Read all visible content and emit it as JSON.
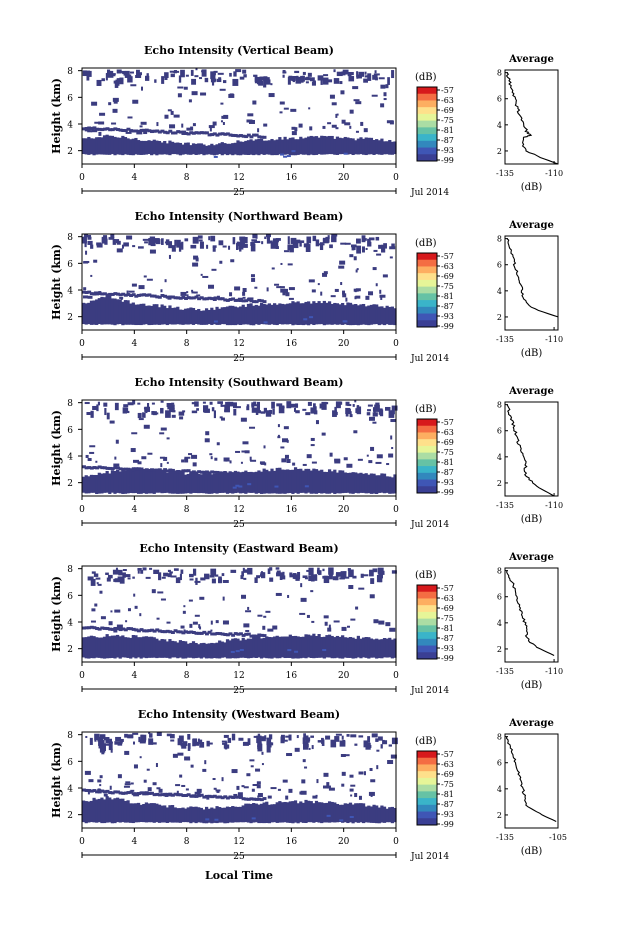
{
  "shared": {
    "x_ticks": [
      "0",
      "4",
      "8",
      "12",
      "16",
      "20",
      "0"
    ],
    "day_label": "25",
    "month_label": "Jul 2014",
    "y_ticks": [
      "2",
      "4",
      "6",
      "8"
    ],
    "ylabel": "Height (km)",
    "colorbar_unit": "(dB)",
    "colorbar_labels": [
      "-57",
      "-63",
      "-69",
      "-75",
      "-81",
      "-87",
      "-93",
      "-99"
    ],
    "colorbar_colors": [
      "#d7191c",
      "#f46d43",
      "#fdae61",
      "#fee08b",
      "#e6f598",
      "#abdda4",
      "#66c2a5",
      "#3ab4c9",
      "#3288bd",
      "#3f56b5",
      "#3a3f94"
    ],
    "fill_color": "#3b3c80",
    "profile_title": "Average",
    "profile_xlabel": "(dB)",
    "xlabel_bottom": "Local Time"
  },
  "chart_data": [
    {
      "type": "heatmap",
      "title": "Echo Intensity (Vertical Beam)",
      "ylabel": "Height (km)",
      "x_range_hours": [
        0,
        24
      ],
      "y_range_km": [
        1,
        8.2
      ],
      "colorbar": {
        "min": -99,
        "max": -57,
        "unit": "dB"
      },
      "dense_layer_top_km": [
        2.9,
        3.0,
        3.1,
        3.0,
        2.9,
        2.8,
        2.7,
        2.6,
        2.5,
        2.45,
        2.5,
        2.6,
        2.7,
        2.8,
        2.85,
        2.9,
        2.95,
        3.0,
        3.05,
        3.0,
        2.95,
        2.9,
        2.9,
        2.8,
        2.7
      ],
      "layer_bottom_km": 1.7,
      "average_profile": {
        "title": "Average",
        "xlabel": "(dB)",
        "xticks": [
          "-135",
          "-110"
        ],
        "xlim": [
          -135,
          -108
        ],
        "yticks": [
          "2",
          "4",
          "6",
          "8"
        ],
        "ylim": [
          1,
          8.2
        ],
        "height_km": [
          1.0,
          1.5,
          2.0,
          2.5,
          3.0,
          3.2,
          3.5,
          4.0,
          4.5,
          5.0,
          5.5,
          6.0,
          6.5,
          7.0,
          7.5,
          8.0
        ],
        "value_db": [
          -108,
          -117,
          -124,
          -126,
          -126,
          -122,
          -124,
          -125,
          -127,
          -128,
          -129,
          -130,
          -131,
          -132,
          -133,
          -134
        ]
      }
    },
    {
      "type": "heatmap",
      "title": "Echo Intensity (Northward Beam)",
      "ylabel": "Height (km)",
      "x_range_hours": [
        0,
        24
      ],
      "y_range_km": [
        1,
        8.2
      ],
      "colorbar": {
        "min": -99,
        "max": -57,
        "unit": "dB"
      },
      "dense_layer_top_km": [
        3.0,
        3.3,
        3.5,
        3.2,
        3.0,
        2.9,
        2.8,
        2.7,
        2.6,
        2.55,
        2.6,
        2.7,
        2.8,
        2.9,
        2.95,
        3.0,
        3.05,
        3.1,
        3.1,
        3.05,
        3.0,
        2.9,
        2.85,
        2.8,
        2.7
      ],
      "layer_bottom_km": 1.4,
      "average_profile": {
        "title": "Average",
        "xlabel": "(dB)",
        "xticks": [
          "-135",
          "-110"
        ],
        "xlim": [
          -135,
          -108
        ],
        "yticks": [
          "2",
          "4",
          "6",
          "8"
        ],
        "ylim": [
          1,
          8.2
        ],
        "height_km": [
          2.0,
          2.5,
          3.0,
          3.5,
          4.0,
          4.5,
          5.0,
          5.5,
          6.0,
          6.5,
          7.0,
          7.5,
          8.0
        ],
        "value_db": [
          -108,
          -118,
          -124,
          -126,
          -126,
          -127,
          -128,
          -129,
          -130,
          -131,
          -132,
          -133,
          -134
        ]
      }
    },
    {
      "type": "heatmap",
      "title": "Echo Intensity (Southward Beam)",
      "ylabel": "Height (km)",
      "x_range_hours": [
        0,
        24
      ],
      "y_range_km": [
        1,
        8.2
      ],
      "colorbar": {
        "min": -99,
        "max": -57,
        "unit": "dB"
      },
      "dense_layer_top_km": [
        2.4,
        2.6,
        2.8,
        3.0,
        3.1,
        3.0,
        2.9,
        2.8,
        2.7,
        2.7,
        2.75,
        2.8,
        2.85,
        2.9,
        2.95,
        3.0,
        3.05,
        3.0,
        2.95,
        2.9,
        2.85,
        2.8,
        2.7,
        2.6,
        2.5
      ],
      "layer_bottom_km": 1.2,
      "average_profile": {
        "title": "Average",
        "xlabel": "(dB)",
        "xticks": [
          "-135",
          "-110"
        ],
        "xlim": [
          -135,
          -108
        ],
        "yticks": [
          "2",
          "4",
          "6",
          "8"
        ],
        "ylim": [
          1,
          8.2
        ],
        "height_km": [
          1.0,
          1.5,
          2.0,
          2.5,
          3.0,
          3.5,
          4.0,
          4.5,
          5.0,
          5.5,
          6.0,
          6.5,
          7.0,
          7.5,
          8.0
        ],
        "value_db": [
          -110,
          -116,
          -121,
          -124,
          -125,
          -124,
          -126,
          -127,
          -128,
          -129,
          -130,
          -131,
          -132,
          -133,
          -134
        ]
      }
    },
    {
      "type": "heatmap",
      "title": "Echo Intensity (Eastward Beam)",
      "ylabel": "Height (km)",
      "x_range_hours": [
        0,
        24
      ],
      "y_range_km": [
        1,
        8.2
      ],
      "colorbar": {
        "min": -99,
        "max": -57,
        "unit": "dB"
      },
      "dense_layer_top_km": [
        2.8,
        2.9,
        3.0,
        2.95,
        2.9,
        2.8,
        2.7,
        2.6,
        2.5,
        2.45,
        2.5,
        2.6,
        2.7,
        2.8,
        2.85,
        2.9,
        2.95,
        3.0,
        3.0,
        2.95,
        2.9,
        2.85,
        2.8,
        2.75,
        2.7
      ],
      "layer_bottom_km": 1.3,
      "average_profile": {
        "title": "Average",
        "xlabel": "(dB)",
        "xticks": [
          "-135",
          "-110"
        ],
        "xlim": [
          -135,
          -108
        ],
        "yticks": [
          "2",
          "4",
          "6",
          "8"
        ],
        "ylim": [
          1,
          8.2
        ],
        "height_km": [
          1.5,
          2.0,
          2.5,
          3.0,
          3.5,
          4.0,
          4.5,
          5.0,
          5.5,
          6.0,
          6.5,
          7.0,
          7.5,
          8.0
        ],
        "value_db": [
          -110,
          -117,
          -122,
          -124,
          -124,
          -125,
          -126,
          -127,
          -128,
          -129,
          -130,
          -131,
          -133,
          -134
        ]
      }
    },
    {
      "type": "heatmap",
      "title": "Echo Intensity (Westward Beam)",
      "ylabel": "Height (km)",
      "x_range_hours": [
        0,
        24
      ],
      "y_range_km": [
        1,
        8.2
      ],
      "colorbar": {
        "min": -99,
        "max": -57,
        "unit": "dB"
      },
      "dense_layer_top_km": [
        3.0,
        3.2,
        3.3,
        3.1,
        2.9,
        2.8,
        2.7,
        2.6,
        2.5,
        2.5,
        2.55,
        2.6,
        2.7,
        2.8,
        2.85,
        2.9,
        2.95,
        3.0,
        2.95,
        2.9,
        2.85,
        2.8,
        2.7,
        2.6,
        2.5
      ],
      "layer_bottom_km": 1.4,
      "average_profile": {
        "title": "Average",
        "xlabel": "(dB)",
        "xticks": [
          "-135",
          "-105"
        ],
        "xlim": [
          -135,
          -105
        ],
        "yticks": [
          "2",
          "4",
          "6",
          "8"
        ],
        "ylim": [
          1,
          8.2
        ],
        "height_km": [
          1.5,
          2.0,
          2.5,
          3.0,
          3.5,
          4.0,
          4.5,
          5.0,
          5.5,
          6.0,
          6.5,
          7.0,
          7.5,
          8.0
        ],
        "value_db": [
          -106,
          -114,
          -121,
          -124,
          -124,
          -125,
          -126,
          -127,
          -128,
          -129,
          -130,
          -131,
          -133,
          -134
        ]
      }
    }
  ]
}
